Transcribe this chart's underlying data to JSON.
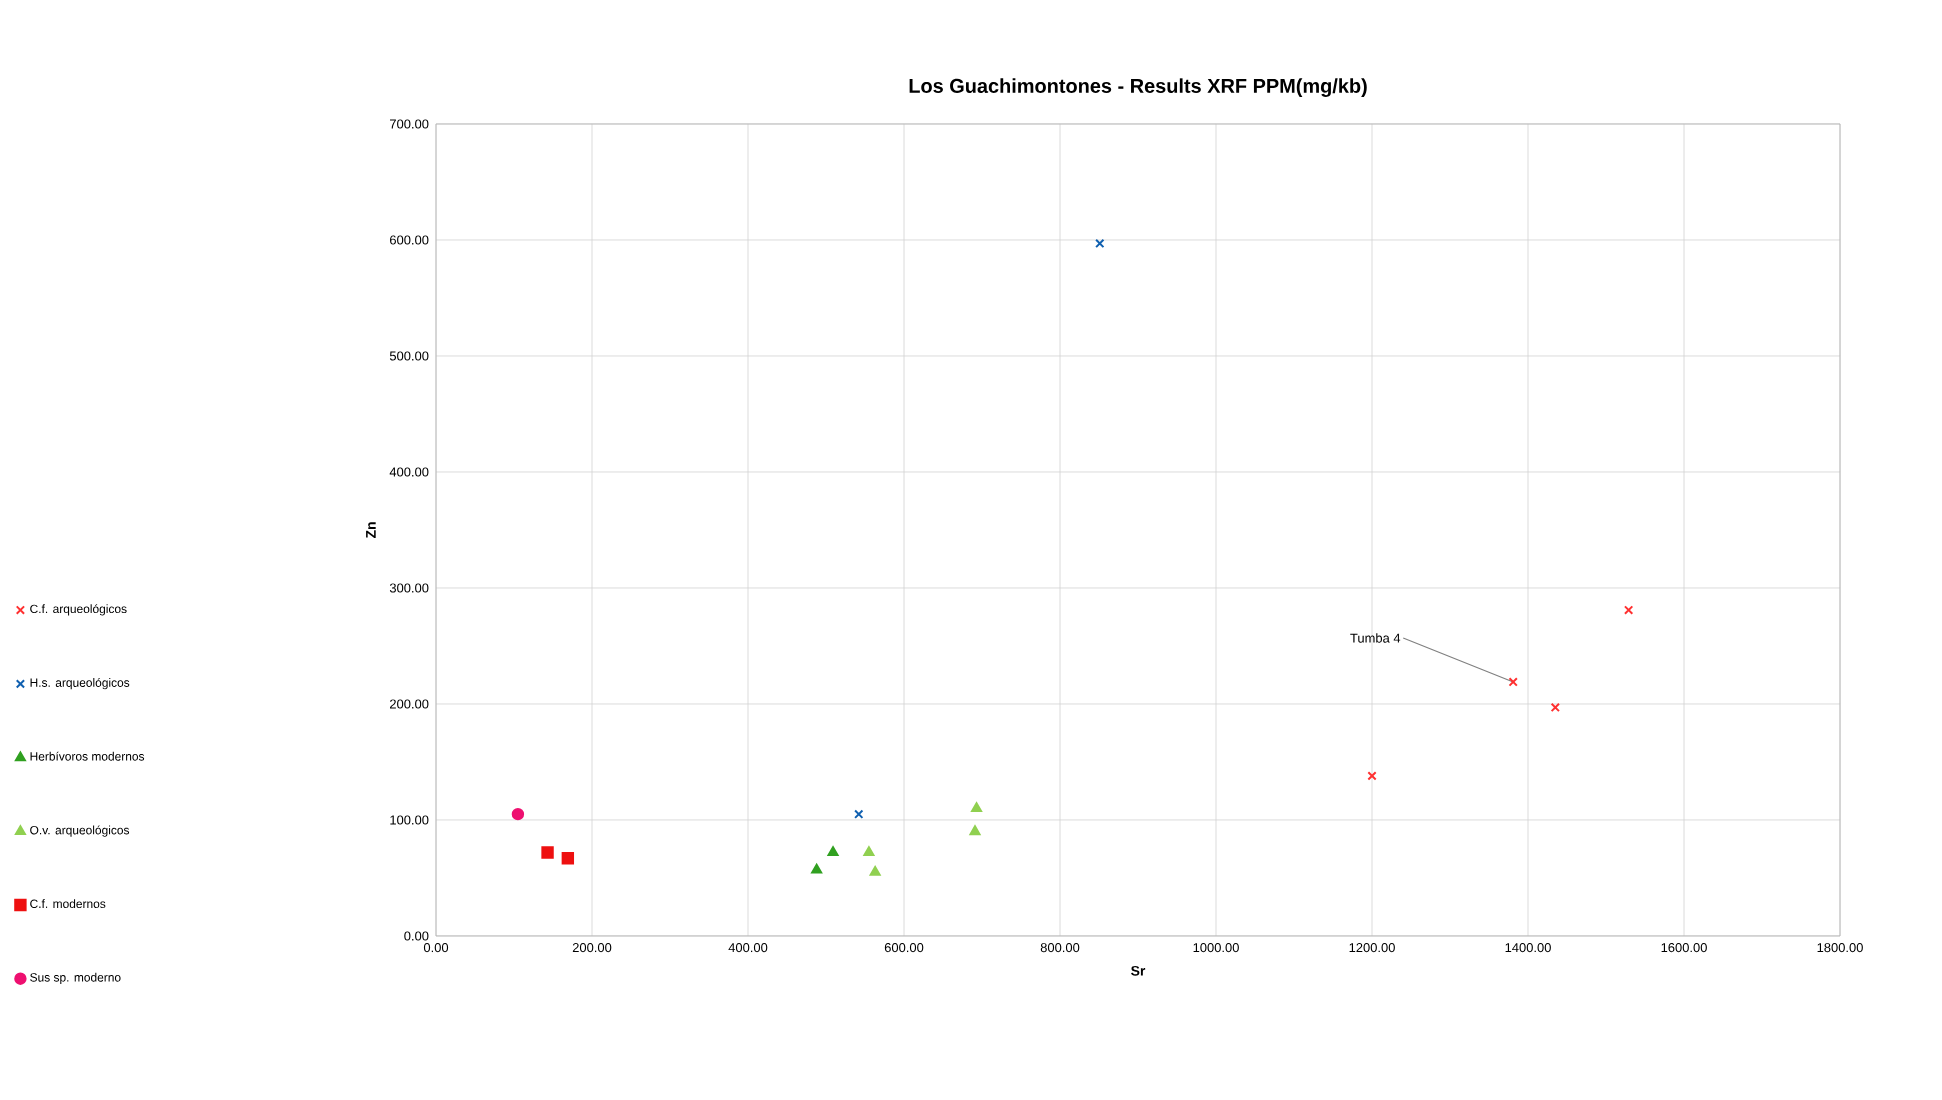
{
  "chart_data": {
    "type": "scatter",
    "title": "Los Guachimontones - Results XRF PPM(mg/kb)",
    "xlabel": "Sr",
    "ylabel": "Zn",
    "xlim": [
      0,
      1800
    ],
    "ylim": [
      0,
      700
    ],
    "xticks": [
      {
        "value": 0,
        "label": "0.00"
      },
      {
        "value": 200,
        "label": "200.00"
      },
      {
        "value": 400,
        "label": "400.00"
      },
      {
        "value": 600,
        "label": "600.00"
      },
      {
        "value": 800,
        "label": "800.00"
      },
      {
        "value": 1000,
        "label": "1000.00"
      },
      {
        "value": 1200,
        "label": "1200.00"
      },
      {
        "value": 1400,
        "label": "1400.00"
      },
      {
        "value": 1600,
        "label": "1600.00"
      },
      {
        "value": 1800,
        "label": "1800.00"
      }
    ],
    "yticks": [
      {
        "value": 0,
        "label": "0.00"
      },
      {
        "value": 100,
        "label": "100.00"
      },
      {
        "value": 200,
        "label": "200.00"
      },
      {
        "value": 300,
        "label": "300.00"
      },
      {
        "value": 400,
        "label": "400.00"
      },
      {
        "value": 500,
        "label": "500.00"
      },
      {
        "value": 600,
        "label": "600.00"
      },
      {
        "value": 700,
        "label": "700.00"
      }
    ],
    "grid": true,
    "legend": "left",
    "annotations": [
      {
        "text": "Tumba 4",
        "x": 1381,
        "y": 219
      }
    ],
    "series": [
      {
        "name": "C.f. arqueológicos",
        "color": "#ff3030",
        "marker": "cross",
        "x": [
          1200,
          1381,
          1435,
          1529
        ],
        "values": [
          138,
          219,
          197,
          281
        ]
      },
      {
        "name": "H.s. arqueológicos",
        "color": "#1060b0",
        "marker": "cross",
        "x": [
          851,
          542
        ],
        "values": [
          597,
          105
        ]
      },
      {
        "name": "Herbívoros modernos",
        "color": "#30a020",
        "marker": "triangle",
        "x": [
          488,
          509
        ],
        "values": [
          57,
          72
        ]
      },
      {
        "name": "O.v. arqueológicos",
        "color": "#90d050",
        "marker": "triangle",
        "x": [
          555,
          563,
          693,
          691
        ],
        "values": [
          72,
          55,
          110,
          90
        ]
      },
      {
        "name": "C.f. modernos",
        "color": "#ee1010",
        "marker": "square",
        "x": [
          143,
          169
        ],
        "values": [
          72,
          67
        ]
      },
      {
        "name": "Sus sp. moderno",
        "color": "#ee1070",
        "marker": "circle",
        "x": [
          105
        ],
        "values": [
          105
        ]
      }
    ]
  }
}
